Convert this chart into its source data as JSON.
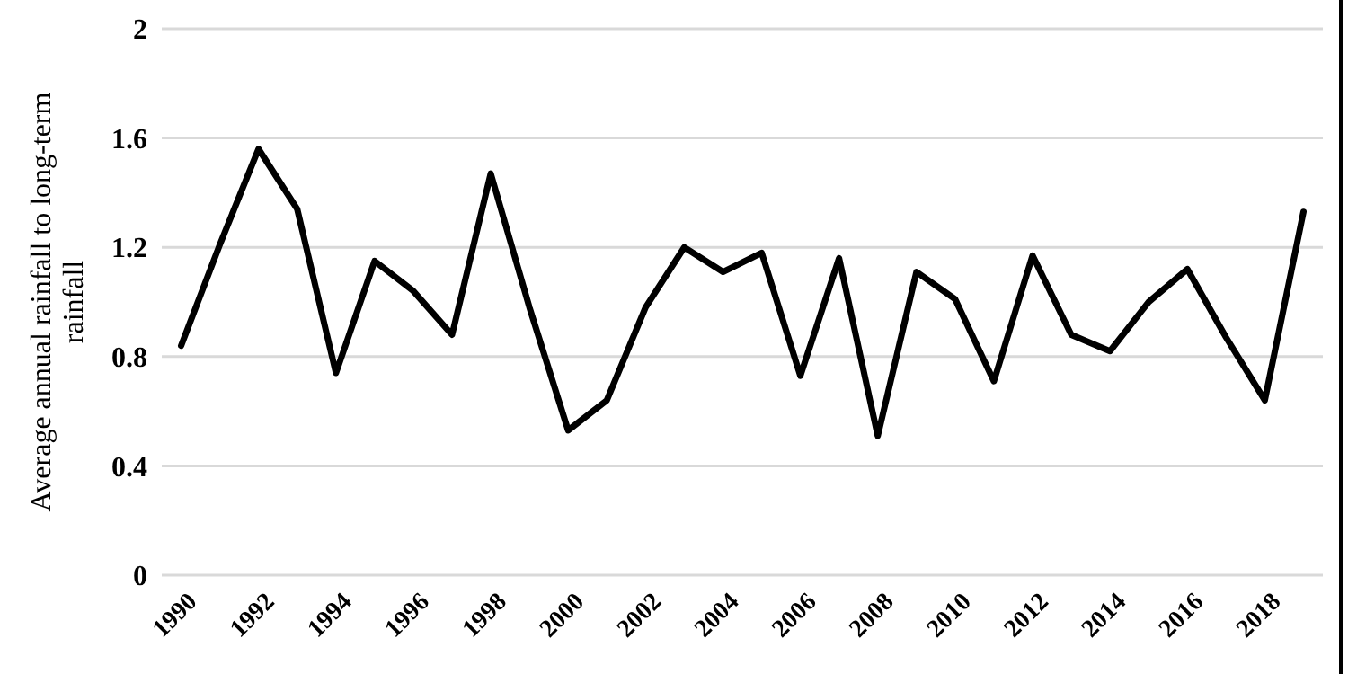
{
  "chart_data": {
    "type": "line",
    "ylabel": "Average annual rainfall to long-term rainfall",
    "categories": [
      "1990",
      null,
      "1992",
      null,
      "1994",
      null,
      "1996",
      null,
      "1998",
      null,
      "2000",
      null,
      "2002",
      null,
      "2004",
      null,
      "2006",
      null,
      "2008",
      null,
      "2010",
      null,
      "2012",
      null,
      "2014",
      null,
      "2016",
      null,
      "2018",
      null
    ],
    "series": [
      {
        "color": "#000000",
        "values": [
          0.84,
          1.21,
          1.56,
          1.34,
          0.74,
          1.15,
          1.04,
          0.88,
          1.47,
          0.98,
          0.53,
          0.64,
          0.98,
          1.2,
          1.11,
          1.18,
          0.73,
          1.16,
          0.51,
          1.11,
          1.01,
          0.71,
          1.17,
          0.88,
          0.82,
          1.0,
          1.12,
          0.87,
          0.64,
          1.33
        ]
      }
    ],
    "ylim": [
      0,
      2
    ],
    "yticks": [
      0,
      0.4,
      0.8,
      1.2,
      1.6,
      2
    ],
    "grid": "y",
    "marker": "none",
    "line_style": "solid"
  }
}
